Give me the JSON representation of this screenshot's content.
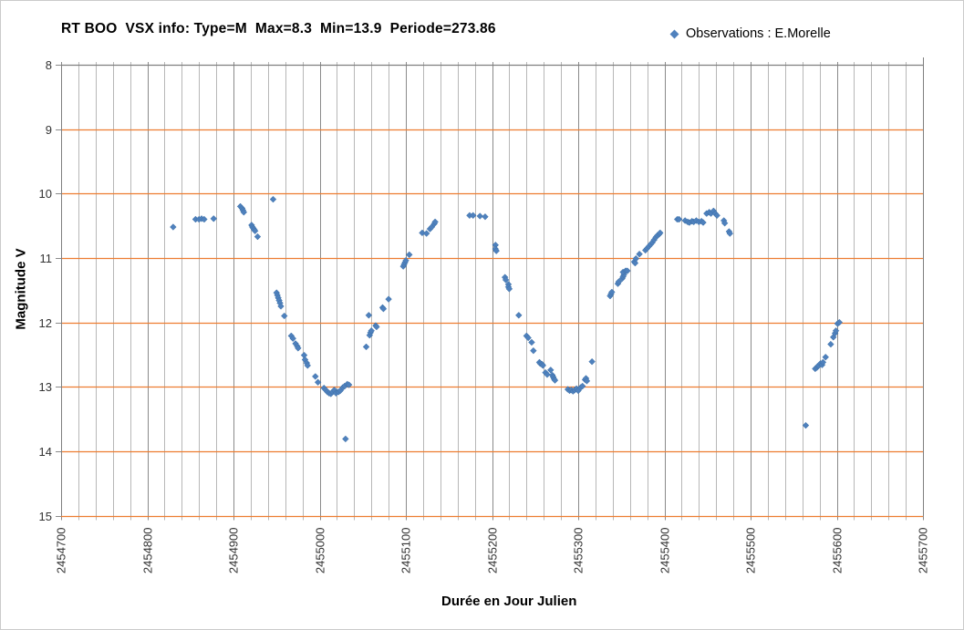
{
  "window": {
    "background": "#ffffff",
    "border_color": "#cbcbcb"
  },
  "header": {
    "title": "RT BOO  VSX info: Type=M  Max=8.3  Min=13.9  Periode=273.86"
  },
  "legend": {
    "label": "Observations : E.Morelle",
    "marker": "diamond-icon",
    "marker_color": "#4f81bd"
  },
  "chart_data": {
    "type": "scatter",
    "title": "RT BOO  VSX info: Type=M  Max=8.3  Min=13.9  Periode=273.86",
    "xlabel": "Durée en Jour Julien",
    "ylabel": "Magnitude V",
    "xlim": [
      2454700,
      2455700
    ],
    "ylim": [
      8,
      15
    ],
    "y_axis_inverted_magnitude": true,
    "x_major_step": 100,
    "x_minor_step": 20,
    "x_ticks": [
      2454700,
      2454800,
      2454900,
      2455000,
      2455100,
      2455200,
      2455300,
      2455400,
      2455500,
      2455600,
      2455700
    ],
    "y_ticks": [
      8,
      9,
      10,
      11,
      12,
      13,
      14,
      15
    ],
    "grid": {
      "horizontal_color": "#ed7d31",
      "vertical_minor_color": "#b7b7b7",
      "vertical_major_color": "#8a8a8a",
      "border_color": "#7f7f7f",
      "tick_label_color": "#333333"
    },
    "legend_position": "top-right",
    "series": [
      {
        "name": "Observations : E.Morelle",
        "marker": "diamond",
        "color": "#4f81bd",
        "edge_color": "#3a6ea5",
        "points": [
          [
            2454830,
            10.52
          ],
          [
            2454856,
            10.4
          ],
          [
            2454860,
            10.4
          ],
          [
            2454863,
            10.39
          ],
          [
            2454866,
            10.4
          ],
          [
            2454877,
            10.39
          ],
          [
            2454908,
            10.2
          ],
          [
            2454910,
            10.23
          ],
          [
            2454911,
            10.26
          ],
          [
            2454912,
            10.29
          ],
          [
            2454921,
            10.49
          ],
          [
            2454922,
            10.52
          ],
          [
            2454923,
            10.54
          ],
          [
            2454924,
            10.56
          ],
          [
            2454925,
            10.58
          ],
          [
            2454928,
            10.67
          ],
          [
            2454946,
            10.09
          ],
          [
            2454950,
            11.54
          ],
          [
            2454951,
            11.58
          ],
          [
            2454952,
            11.62
          ],
          [
            2454953,
            11.66
          ],
          [
            2454954,
            11.7
          ],
          [
            2454955,
            11.75
          ],
          [
            2454959,
            11.9
          ],
          [
            2454967,
            12.21
          ],
          [
            2454969,
            12.25
          ],
          [
            2454972,
            12.33
          ],
          [
            2454974,
            12.37
          ],
          [
            2454975,
            12.4
          ],
          [
            2454982,
            12.51
          ],
          [
            2454983,
            12.58
          ],
          [
            2454985,
            12.63
          ],
          [
            2454986,
            12.67
          ],
          [
            2454995,
            12.84
          ],
          [
            2454998,
            12.93
          ],
          [
            2455005,
            13.02
          ],
          [
            2455007,
            13.05
          ],
          [
            2455009,
            13.08
          ],
          [
            2455011,
            13.1
          ],
          [
            2455013,
            13.11
          ],
          [
            2455015,
            13.08
          ],
          [
            2455017,
            13.05
          ],
          [
            2455019,
            13.1
          ],
          [
            2455022,
            13.08
          ],
          [
            2455024,
            13.06
          ],
          [
            2455027,
            13.01
          ],
          [
            2455029,
            12.99
          ],
          [
            2455032,
            12.96
          ],
          [
            2455034,
            12.97
          ],
          [
            2455030,
            13.81
          ],
          [
            2455054,
            12.38
          ],
          [
            2455057,
            11.89
          ],
          [
            2455058,
            12.2
          ],
          [
            2455059,
            12.16
          ],
          [
            2455060,
            12.13
          ],
          [
            2455065,
            12.05
          ],
          [
            2455066,
            12.07
          ],
          [
            2455073,
            11.77
          ],
          [
            2455074,
            11.79
          ],
          [
            2455080,
            11.64
          ],
          [
            2455097,
            11.13
          ],
          [
            2455098,
            11.1
          ],
          [
            2455099,
            11.07
          ],
          [
            2455100,
            11.04
          ],
          [
            2455104,
            10.95
          ],
          [
            2455119,
            10.61
          ],
          [
            2455124,
            10.62
          ],
          [
            2455128,
            10.55
          ],
          [
            2455130,
            10.52
          ],
          [
            2455133,
            10.47
          ],
          [
            2455134,
            10.44
          ],
          [
            2455174,
            10.34
          ],
          [
            2455178,
            10.34
          ],
          [
            2455186,
            10.35
          ],
          [
            2455192,
            10.36
          ],
          [
            2455204,
            10.8
          ],
          [
            2455204,
            10.86
          ],
          [
            2455205,
            10.89
          ],
          [
            2455215,
            11.3
          ],
          [
            2455216,
            11.34
          ],
          [
            2455219,
            11.41
          ],
          [
            2455219,
            11.45
          ],
          [
            2455220,
            11.48
          ],
          [
            2455231,
            11.89
          ],
          [
            2455240,
            12.21
          ],
          [
            2455242,
            12.24
          ],
          [
            2455246,
            12.31
          ],
          [
            2455248,
            12.44
          ],
          [
            2455255,
            12.62
          ],
          [
            2455256,
            12.64
          ],
          [
            2455258,
            12.65
          ],
          [
            2455259,
            12.67
          ],
          [
            2455262,
            12.78
          ],
          [
            2455264,
            12.81
          ],
          [
            2455268,
            12.74
          ],
          [
            2455270,
            12.82
          ],
          [
            2455271,
            12.85
          ],
          [
            2455272,
            12.88
          ],
          [
            2455273,
            12.9
          ],
          [
            2455288,
            13.04
          ],
          [
            2455290,
            13.06
          ],
          [
            2455292,
            13.05
          ],
          [
            2455294,
            13.07
          ],
          [
            2455296,
            13.05
          ],
          [
            2455298,
            13.03
          ],
          [
            2455300,
            13.06
          ],
          [
            2455303,
            13.01
          ],
          [
            2455305,
            12.99
          ],
          [
            2455308,
            12.89
          ],
          [
            2455309,
            12.87
          ],
          [
            2455310,
            12.91
          ],
          [
            2455316,
            12.61
          ],
          [
            2455337,
            11.59
          ],
          [
            2455338,
            11.56
          ],
          [
            2455339,
            11.53
          ],
          [
            2455346,
            11.4
          ],
          [
            2455347,
            11.37
          ],
          [
            2455351,
            11.32
          ],
          [
            2455352,
            11.29
          ],
          [
            2455353,
            11.26
          ],
          [
            2455352,
            11.22
          ],
          [
            2455355,
            11.2
          ],
          [
            2455357,
            11.2
          ],
          [
            2455365,
            11.06
          ],
          [
            2455366,
            11.08
          ],
          [
            2455367,
            11.01
          ],
          [
            2455371,
            10.94
          ],
          [
            2455378,
            10.88
          ],
          [
            2455380,
            10.85
          ],
          [
            2455382,
            10.82
          ],
          [
            2455384,
            10.79
          ],
          [
            2455386,
            10.76
          ],
          [
            2455388,
            10.72
          ],
          [
            2455390,
            10.68
          ],
          [
            2455392,
            10.65
          ],
          [
            2455394,
            10.63
          ],
          [
            2455395,
            10.61
          ],
          [
            2455415,
            10.4
          ],
          [
            2455417,
            10.4
          ],
          [
            2455424,
            10.42
          ],
          [
            2455427,
            10.44
          ],
          [
            2455429,
            10.45
          ],
          [
            2455432,
            10.43
          ],
          [
            2455434,
            10.44
          ],
          [
            2455437,
            10.42
          ],
          [
            2455440,
            10.44
          ],
          [
            2455443,
            10.43
          ],
          [
            2455445,
            10.45
          ],
          [
            2455449,
            10.31
          ],
          [
            2455452,
            10.29
          ],
          [
            2455454,
            10.31
          ],
          [
            2455457,
            10.27
          ],
          [
            2455459,
            10.31
          ],
          [
            2455461,
            10.34
          ],
          [
            2455469,
            10.42
          ],
          [
            2455470,
            10.46
          ],
          [
            2455475,
            10.59
          ],
          [
            2455476,
            10.62
          ],
          [
            2455564,
            13.6
          ],
          [
            2455575,
            12.72
          ],
          [
            2455577,
            12.7
          ],
          [
            2455578,
            12.68
          ],
          [
            2455579,
            12.67
          ],
          [
            2455581,
            12.64
          ],
          [
            2455583,
            12.66
          ],
          [
            2455584,
            12.62
          ],
          [
            2455587,
            12.54
          ],
          [
            2455593,
            12.34
          ],
          [
            2455596,
            12.23
          ],
          [
            2455598,
            12.17
          ],
          [
            2455599,
            12.13
          ],
          [
            2455601,
            12.02
          ],
          [
            2455603,
            12.0
          ]
        ]
      }
    ]
  }
}
